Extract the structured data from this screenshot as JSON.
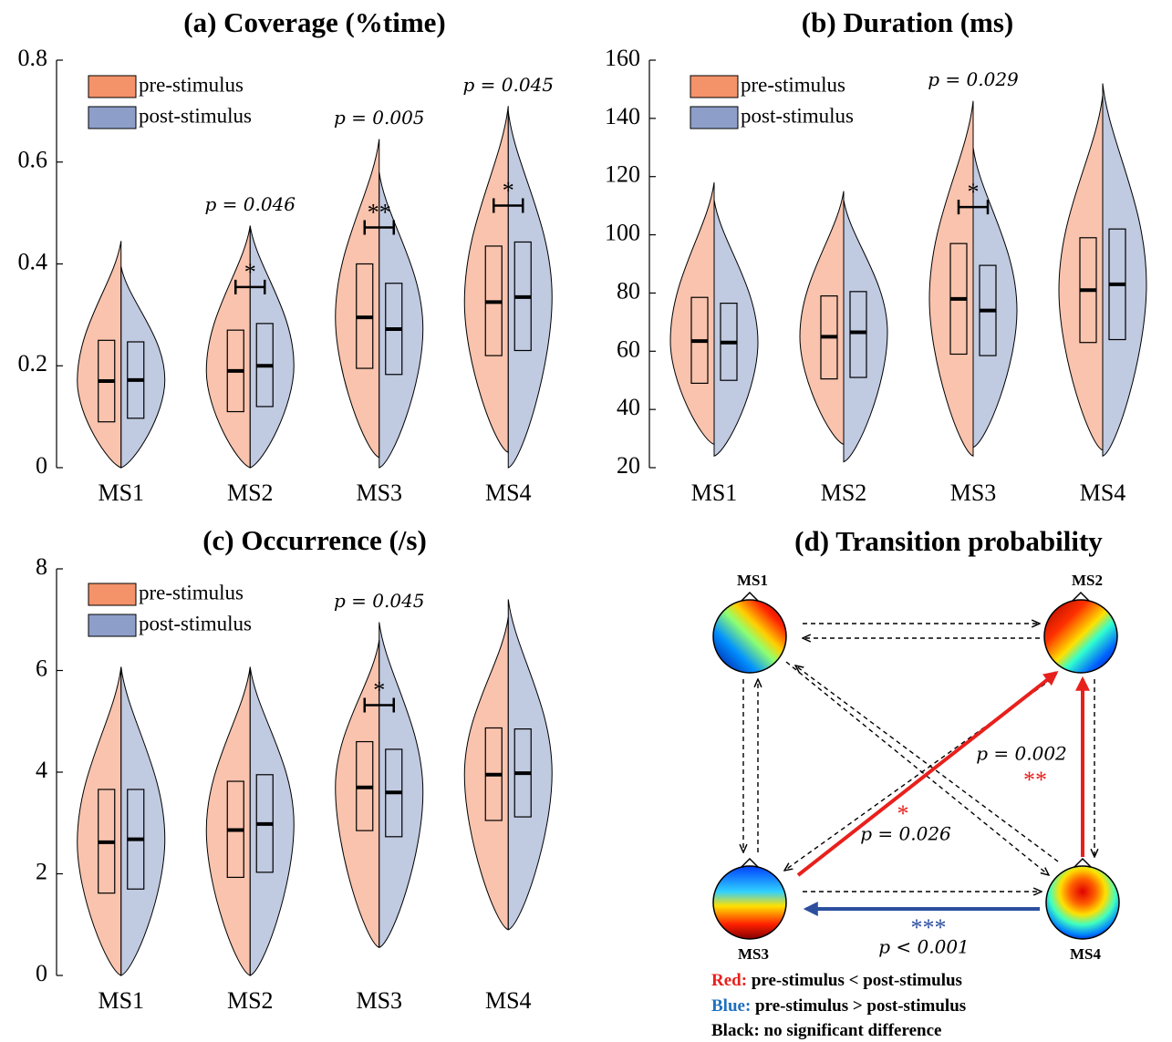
{
  "chart_data": [
    {
      "type": "raincloud",
      "title": "(a) Coverage (%time)",
      "categories": [
        "MS1",
        "MS2",
        "MS3",
        "MS4"
      ],
      "ylim": [
        0,
        0.8
      ],
      "yticks": [
        0,
        0.2,
        0.4,
        0.6,
        0.8
      ],
      "legend": "upper left",
      "series": [
        {
          "name": "pre-stimulus",
          "color": "#f4926a",
          "median": [
            0.17,
            0.19,
            0.295,
            0.325
          ],
          "q1": [
            0.09,
            0.11,
            0.195,
            0.22
          ],
          "q3": [
            0.25,
            0.27,
            0.4,
            0.435
          ],
          "min": [
            0,
            0,
            0.02,
            0.03
          ],
          "max": [
            0.445,
            0.475,
            0.645,
            0.71
          ]
        },
        {
          "name": "post-stimulus",
          "color": "#8d9ec9",
          "median": [
            0.172,
            0.2,
            0.272,
            0.335
          ],
          "q1": [
            0.097,
            0.12,
            0.183,
            0.23
          ],
          "q3": [
            0.247,
            0.283,
            0.362,
            0.443
          ],
          "min": [
            0,
            0,
            0,
            0
          ],
          "max": [
            0.395,
            0.475,
            0.58,
            0.7
          ]
        }
      ],
      "annotations": [
        {
          "category": "MS2",
          "p": "p = 0.046",
          "stars": "*"
        },
        {
          "category": "MS3",
          "p": "p = 0.005",
          "stars": "**"
        },
        {
          "category": "MS4",
          "p": "p = 0.045",
          "stars": "*"
        }
      ]
    },
    {
      "type": "raincloud",
      "title": "(b) Duration (ms)",
      "categories": [
        "MS1",
        "MS2",
        "MS3",
        "MS4"
      ],
      "ylim": [
        20,
        160
      ],
      "yticks": [
        20,
        40,
        60,
        80,
        100,
        120,
        140,
        160
      ],
      "legend": "upper left",
      "series": [
        {
          "name": "pre-stimulus",
          "color": "#f4926a",
          "median": [
            63.5,
            65,
            78,
            81
          ],
          "q1": [
            49,
            50.5,
            59,
            63
          ],
          "q3": [
            78.5,
            79,
            97,
            99
          ],
          "min": [
            28,
            28,
            24,
            26
          ],
          "max": [
            118,
            115,
            146,
            148
          ]
        },
        {
          "name": "post-stimulus",
          "color": "#8d9ec9",
          "median": [
            63,
            66.5,
            74,
            83
          ],
          "q1": [
            50,
            51,
            58.5,
            64
          ],
          "q3": [
            76.5,
            80.5,
            89.5,
            102
          ],
          "min": [
            24,
            22,
            27,
            24
          ],
          "max": [
            112,
            112,
            130,
            152
          ]
        }
      ],
      "annotations": [
        {
          "category": "MS3",
          "p": "p = 0.029",
          "stars": "*"
        }
      ]
    },
    {
      "type": "raincloud",
      "title": "(c) Occurrence (/s)",
      "categories": [
        "MS1",
        "MS2",
        "MS3",
        "MS4"
      ],
      "ylim": [
        0,
        8
      ],
      "yticks": [
        0,
        2,
        4,
        6,
        8
      ],
      "legend": "upper left",
      "series": [
        {
          "name": "pre-stimulus",
          "color": "#f4926a",
          "median": [
            2.62,
            2.86,
            3.7,
            3.95
          ],
          "q1": [
            1.62,
            1.93,
            2.85,
            3.05
          ],
          "q3": [
            3.66,
            3.82,
            4.6,
            4.87
          ],
          "min": [
            0,
            0,
            0.55,
            0.9
          ],
          "max": [
            6.07,
            6.07,
            6.6,
            7.05
          ]
        },
        {
          "name": "post-stimulus",
          "color": "#8d9ec9",
          "median": [
            2.68,
            2.98,
            3.6,
            3.98
          ],
          "q1": [
            1.7,
            2.03,
            2.73,
            3.12
          ],
          "q3": [
            3.66,
            3.95,
            4.45,
            4.85
          ],
          "min": [
            0,
            0,
            0.55,
            0.9
          ],
          "max": [
            6.07,
            6.07,
            6.95,
            7.4
          ]
        }
      ],
      "annotations": [
        {
          "category": "MS3",
          "p": "p = 0.045",
          "stars": "*"
        }
      ]
    }
  ],
  "diagram": {
    "title": "(d) Transition probability",
    "nodes": [
      {
        "label": "MS1"
      },
      {
        "label": "MS2"
      },
      {
        "label": "MS3"
      },
      {
        "label": "MS4"
      }
    ],
    "annotations": [
      {
        "p": "p = 0.002",
        "stars": "**"
      },
      {
        "p": "p = 0.026",
        "stars": "*"
      },
      {
        "p": "p < 0.001",
        "stars": "***"
      }
    ],
    "legend": [
      {
        "key": "Red:",
        "text": "pre-stimulus < post-stimulus"
      },
      {
        "key": "Blue:",
        "text": "pre-stimulus > post-stimulus"
      },
      {
        "key": "Black:",
        "text": "no significant difference"
      }
    ]
  }
}
